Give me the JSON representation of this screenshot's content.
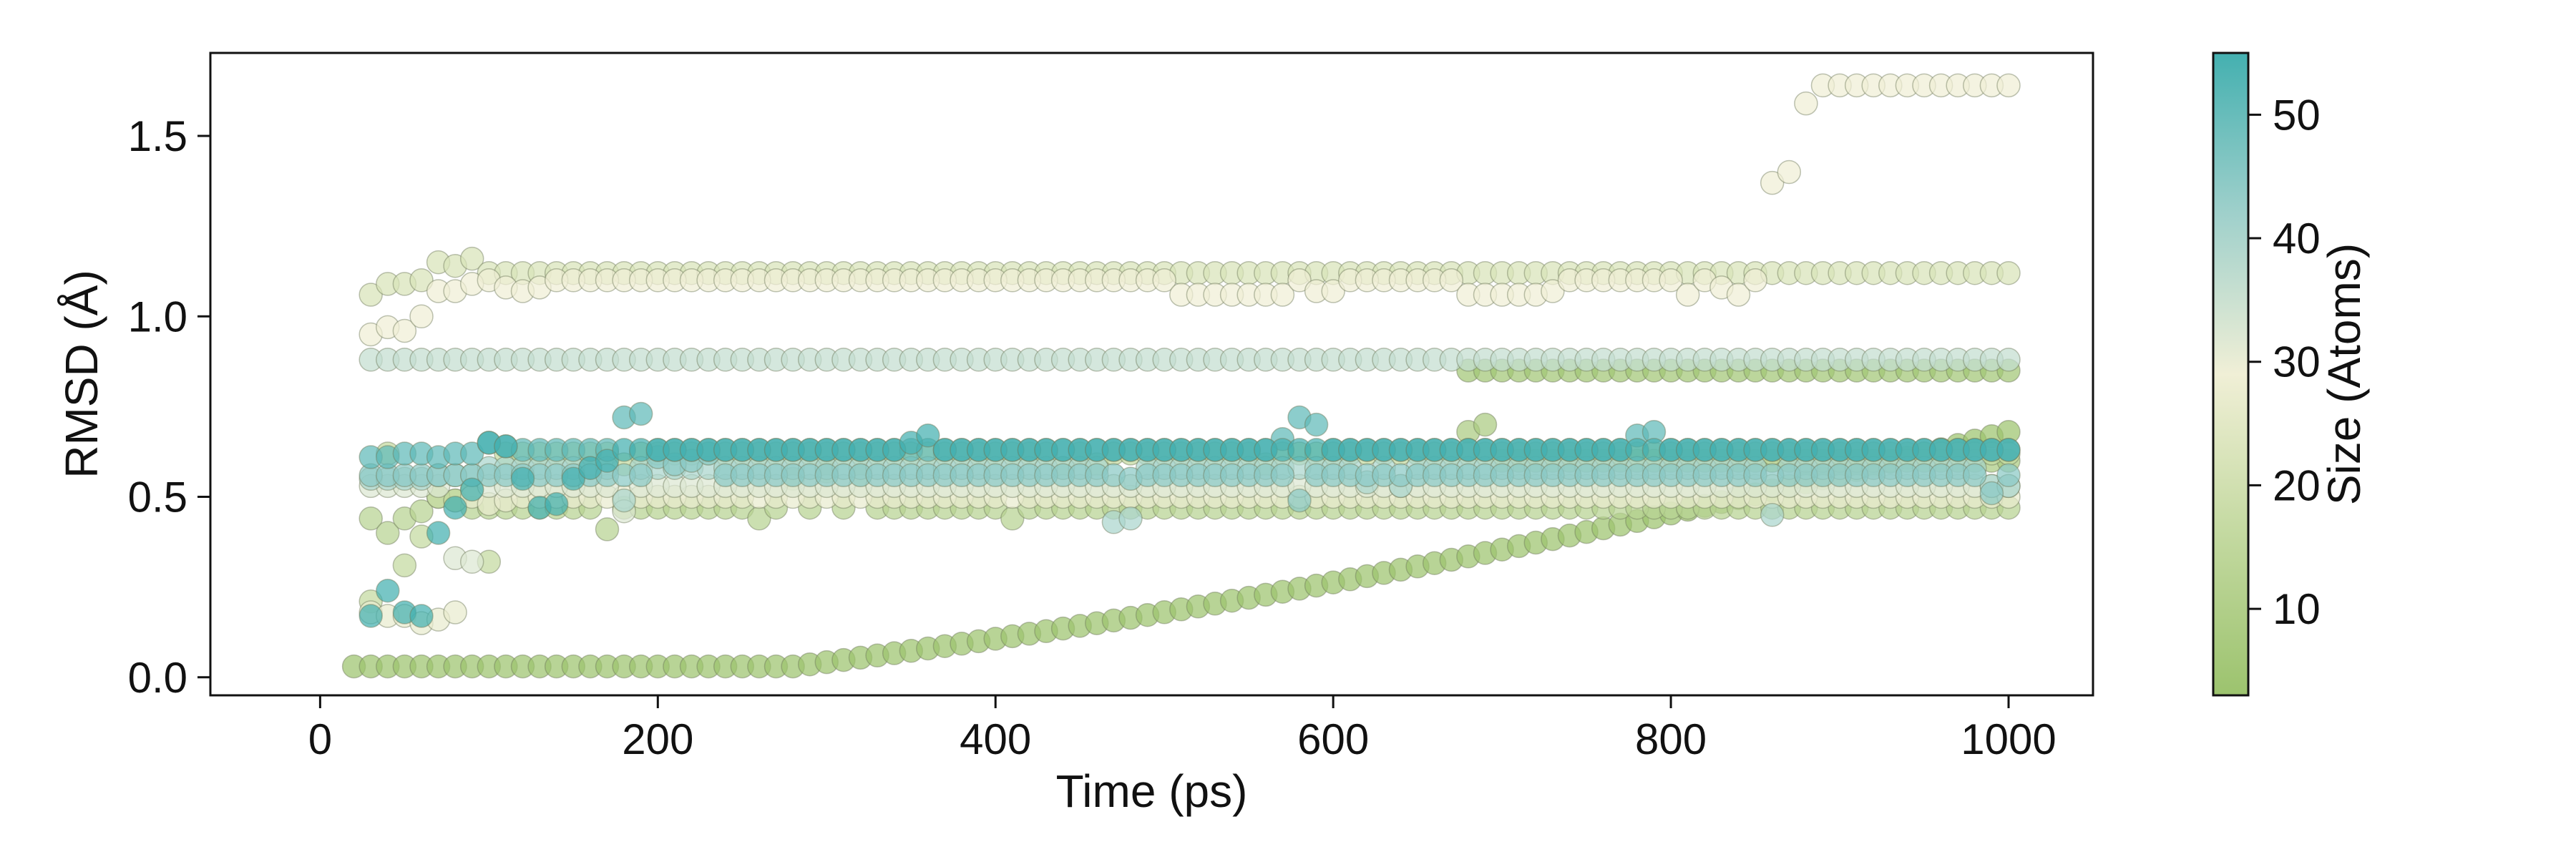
{
  "chart_data": {
    "type": "scatter",
    "title": "",
    "xlabel": "Time (ps)",
    "ylabel": "RMSD (Å)",
    "xlim": [
      -65,
      1050
    ],
    "ylim": [
      -0.05,
      1.73
    ],
    "xticks": [
      0,
      200,
      400,
      600,
      800,
      1000
    ],
    "xtick_labels": [
      "0",
      "200",
      "400",
      "600",
      "800",
      "1000"
    ],
    "yticks": [
      0.0,
      0.5,
      1.0,
      1.5
    ],
    "ytick_labels": [
      "0.0",
      "0.5",
      "1.0",
      "1.5"
    ],
    "grid": false,
    "colorbar": {
      "label": "Size (Atoms)",
      "range": [
        3,
        55
      ],
      "ticks": [
        10,
        20,
        30,
        40,
        50
      ],
      "tick_labels": [
        "10",
        "20",
        "30",
        "40",
        "50"
      ],
      "colormap": [
        "#9cc36e",
        "#c3d9a0",
        "#f0efd6",
        "#9fd0cb",
        "#44b0b0"
      ]
    },
    "marker_alpha": 0.72,
    "series": [
      {
        "name": "size 3",
        "size": 3,
        "start": 20,
        "end": 1000,
        "step": 10,
        "base": 0.03,
        "ramp": {
          "from": 280,
          "to": 1000,
          "start_val": 0.03,
          "end_val": 0.68
        },
        "outliers": []
      },
      {
        "name": "size 5",
        "size": 5,
        "start": 680,
        "end": 1000,
        "step": 10,
        "base": 0.85,
        "outliers": []
      },
      {
        "name": "size 8",
        "size": 8,
        "start": 680,
        "end": 1000,
        "step": 10,
        "base": 0.6,
        "outliers": [
          [
            680,
            0.68
          ],
          [
            690,
            0.7
          ]
        ]
      },
      {
        "name": "size 12",
        "size": 12,
        "start": 30,
        "end": 1000,
        "step": 10,
        "base": 0.47,
        "outliers": [
          [
            30,
            0.44
          ],
          [
            40,
            0.4
          ],
          [
            50,
            0.44
          ],
          [
            60,
            0.46
          ],
          [
            70,
            0.5
          ],
          [
            80,
            0.49
          ],
          [
            170,
            0.41
          ],
          [
            260,
            0.44
          ],
          [
            410,
            0.44
          ],
          [
            530,
            0.47
          ],
          [
            280,
            0.55
          ],
          [
            300,
            0.57
          ],
          [
            320,
            0.56
          ]
        ]
      },
      {
        "name": "size 16",
        "size": 16,
        "start": 30,
        "end": 1000,
        "step": 10,
        "base": 0.62,
        "outliers": [
          [
            30,
            0.21
          ],
          [
            50,
            0.31
          ],
          [
            60,
            0.39
          ],
          [
            70,
            0.5
          ],
          [
            80,
            0.49
          ],
          [
            90,
            0.52
          ],
          [
            100,
            0.32
          ],
          [
            180,
            0.59
          ],
          [
            440,
            0.58
          ],
          [
            460,
            0.59
          ],
          [
            560,
            0.59
          ]
        ]
      },
      {
        "name": "size 22",
        "size": 22,
        "start": 30,
        "end": 1000,
        "step": 10,
        "base": 1.12,
        "outliers": [
          [
            30,
            1.06
          ],
          [
            40,
            1.09
          ],
          [
            50,
            1.09
          ],
          [
            60,
            1.1
          ],
          [
            70,
            1.15
          ],
          [
            80,
            1.14
          ],
          [
            90,
            1.16
          ]
        ]
      },
      {
        "name": "size 27",
        "size": 27,
        "start": 30,
        "end": 1000,
        "step": 10,
        "base": 0.5,
        "outliers": [
          [
            30,
            0.18
          ],
          [
            40,
            0.17
          ],
          [
            50,
            0.17
          ],
          [
            60,
            0.15
          ],
          [
            70,
            0.16
          ],
          [
            80,
            0.18
          ],
          [
            100,
            0.48
          ],
          [
            110,
            0.49
          ]
        ]
      },
      {
        "name": "size 29",
        "size": 29,
        "start": 30,
        "end": 1000,
        "step": 10,
        "base": 1.1,
        "outliers": [
          [
            30,
            0.95
          ],
          [
            40,
            0.97
          ],
          [
            50,
            0.96
          ],
          [
            60,
            1.0
          ],
          [
            70,
            1.07
          ],
          [
            80,
            1.07
          ],
          [
            90,
            1.09
          ],
          [
            110,
            1.08
          ],
          [
            120,
            1.07
          ],
          [
            130,
            1.08
          ],
          [
            140,
            1.1
          ],
          [
            510,
            1.06
          ],
          [
            520,
            1.06
          ],
          [
            530,
            1.06
          ],
          [
            540,
            1.06
          ],
          [
            550,
            1.06
          ],
          [
            560,
            1.06
          ],
          [
            570,
            1.06
          ],
          [
            590,
            1.07
          ],
          [
            600,
            1.07
          ],
          [
            680,
            1.06
          ],
          [
            690,
            1.06
          ],
          [
            700,
            1.06
          ],
          [
            710,
            1.06
          ],
          [
            720,
            1.06
          ],
          [
            730,
            1.07
          ],
          [
            810,
            1.06
          ],
          [
            830,
            1.08
          ],
          [
            840,
            1.06
          ],
          [
            860,
            1.37
          ],
          [
            870,
            1.4
          ],
          [
            880,
            1.59
          ],
          [
            890,
            1.64
          ],
          [
            900,
            1.64
          ],
          [
            910,
            1.64
          ],
          [
            920,
            1.64
          ],
          [
            930,
            1.64
          ],
          [
            940,
            1.64
          ],
          [
            950,
            1.64
          ],
          [
            960,
            1.64
          ],
          [
            970,
            1.64
          ],
          [
            980,
            1.64
          ],
          [
            990,
            1.64
          ],
          [
            1000,
            1.64
          ]
        ]
      },
      {
        "name": "size 32",
        "size": 32,
        "start": 30,
        "end": 1000,
        "step": 10,
        "base": 0.53,
        "outliers": [
          [
            80,
            0.33
          ],
          [
            90,
            0.32
          ],
          [
            180,
            0.46
          ]
        ]
      },
      {
        "name": "size 36",
        "size": 36,
        "start": 30,
        "end": 1000,
        "step": 10,
        "base": 0.88,
        "outliers": []
      },
      {
        "name": "size 40",
        "size": 40,
        "start": 30,
        "end": 1000,
        "step": 10,
        "base": 0.58,
        "outliers": [
          [
            30,
            0.55
          ],
          [
            40,
            0.55
          ],
          [
            50,
            0.55
          ],
          [
            60,
            0.55
          ],
          [
            70,
            0.56
          ],
          [
            80,
            0.56
          ],
          [
            90,
            0.56
          ],
          [
            180,
            0.49
          ],
          [
            470,
            0.43
          ],
          [
            480,
            0.44
          ],
          [
            620,
            0.54
          ],
          [
            640,
            0.53
          ],
          [
            860,
            0.45
          ],
          [
            990,
            0.53
          ],
          [
            1000,
            0.53
          ]
        ]
      },
      {
        "name": "size 45",
        "size": 45,
        "start": 30,
        "end": 1000,
        "step": 10,
        "base": 0.56,
        "outliers": [
          [
            200,
            0.61
          ],
          [
            210,
            0.59
          ],
          [
            220,
            0.6
          ],
          [
            230,
            0.62
          ],
          [
            480,
            0.55
          ],
          [
            580,
            0.49
          ],
          [
            990,
            0.51
          ]
        ]
      },
      {
        "name": "size 51",
        "size": 51,
        "start": 30,
        "end": 1000,
        "step": 10,
        "base": 0.63,
        "outliers": [
          [
            30,
            0.61
          ],
          [
            40,
            0.61
          ],
          [
            50,
            0.62
          ],
          [
            60,
            0.62
          ],
          [
            70,
            0.61
          ],
          [
            80,
            0.62
          ],
          [
            90,
            0.62
          ],
          [
            100,
            0.65
          ],
          [
            110,
            0.64
          ],
          [
            180,
            0.72
          ],
          [
            190,
            0.73
          ],
          [
            570,
            0.66
          ],
          [
            580,
            0.72
          ],
          [
            590,
            0.7
          ],
          [
            780,
            0.67
          ],
          [
            790,
            0.68
          ]
        ]
      },
      {
        "name": "size 55",
        "size": 55,
        "start": 30,
        "end": 1000,
        "step": 10,
        "base": 0.63,
        "outliers": [
          [
            30,
            0.17
          ],
          [
            40,
            0.24
          ],
          [
            50,
            0.18
          ],
          [
            60,
            0.17
          ],
          [
            70,
            0.4
          ],
          [
            80,
            0.47
          ],
          [
            90,
            0.52
          ],
          [
            100,
            0.65
          ],
          [
            110,
            0.64
          ],
          [
            120,
            0.55
          ],
          [
            130,
            0.47
          ],
          [
            140,
            0.48
          ],
          [
            150,
            0.55
          ],
          [
            160,
            0.58
          ],
          [
            170,
            0.6
          ],
          [
            350,
            0.65
          ],
          [
            360,
            0.67
          ]
        ]
      }
    ]
  }
}
